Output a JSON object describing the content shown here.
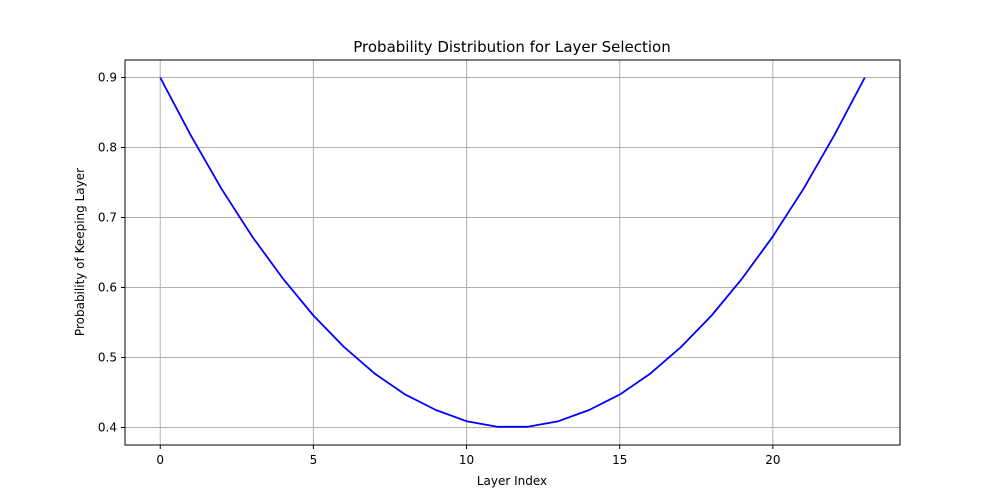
{
  "chart_data": {
    "type": "line",
    "title": "Probability Distribution for Layer Selection",
    "xlabel": "Layer Index",
    "ylabel": "Probability of Keeping Layer",
    "xlim": [
      -1.15,
      24.15
    ],
    "ylim": [
      0.375,
      0.925
    ],
    "xticks": [
      0,
      5,
      10,
      15,
      20
    ],
    "xtick_labels": [
      "0",
      "5",
      "10",
      "15",
      "20"
    ],
    "yticks": [
      0.4,
      0.5,
      0.6,
      0.7,
      0.8,
      0.9
    ],
    "ytick_labels": [
      "0.4",
      "0.5",
      "0.6",
      "0.7",
      "0.8",
      "0.9"
    ],
    "grid": true,
    "legend": null,
    "series": [
      {
        "name": "keep_probability",
        "color": "#0000ff",
        "x": [
          0,
          1,
          2,
          3,
          4,
          5,
          6,
          7,
          8,
          9,
          10,
          11,
          12,
          13,
          14,
          15,
          16,
          17,
          18,
          19,
          20,
          21,
          22,
          23
        ],
        "values": [
          0.9,
          0.817,
          0.741,
          0.673,
          0.613,
          0.56,
          0.515,
          0.477,
          0.447,
          0.425,
          0.409,
          0.401,
          0.401,
          0.409,
          0.425,
          0.447,
          0.477,
          0.515,
          0.56,
          0.613,
          0.673,
          0.741,
          0.817,
          0.9
        ]
      }
    ]
  },
  "colors": {
    "line": "#0000ff",
    "grid": "#b0b0b0",
    "axes": "#000000",
    "background": "#ffffff"
  }
}
